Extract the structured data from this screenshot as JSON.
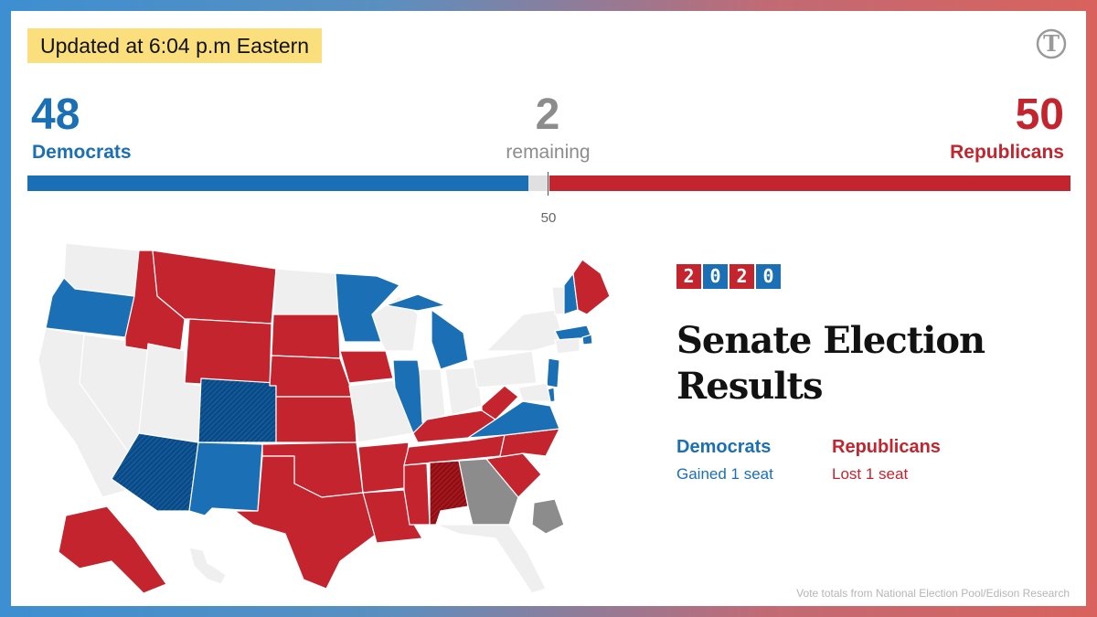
{
  "update_badge": {
    "text": "Updated at 6:04 p.m Eastern"
  },
  "logo": {
    "icon": "nyt-t-logo",
    "color": "#999999"
  },
  "tally": {
    "democrats": {
      "count": "48",
      "label": "Democrats",
      "seats": 48,
      "color": "#1a6fb5"
    },
    "remaining": {
      "count": "2",
      "label": "remaining",
      "seats": 2,
      "color": "#8c8c8c"
    },
    "republicans": {
      "count": "50",
      "label": "Republicans",
      "seats": 50,
      "color": "#c4242d"
    },
    "total_seats": 100,
    "majority_label": "50"
  },
  "year_badge": {
    "digits": [
      "2",
      "0",
      "2",
      "0"
    ]
  },
  "headline": {
    "line1": "Senate Election",
    "line2": "Results"
  },
  "summary": {
    "democrats": {
      "name": "Democrats",
      "change": "Gained 1 seat"
    },
    "republicans": {
      "name": "Republicans",
      "change": "Lost 1 seat"
    }
  },
  "map": {
    "legend_colors": {
      "dem": "#1a6fb5",
      "dem_flip": "#0b4a85",
      "rep": "#c4242d",
      "rep_flip": "#8e0f14",
      "undecided": "#8c8c8c",
      "no_race": "#efefef"
    },
    "states": [
      {
        "id": "WA",
        "status": "no_race"
      },
      {
        "id": "OR",
        "status": "dem"
      },
      {
        "id": "CA",
        "status": "no_race"
      },
      {
        "id": "NV",
        "status": "no_race"
      },
      {
        "id": "ID",
        "status": "rep"
      },
      {
        "id": "MT",
        "status": "rep"
      },
      {
        "id": "WY",
        "status": "rep"
      },
      {
        "id": "UT",
        "status": "no_race"
      },
      {
        "id": "CO",
        "status": "dem_flip"
      },
      {
        "id": "AZ",
        "status": "dem_flip"
      },
      {
        "id": "NM",
        "status": "dem"
      },
      {
        "id": "ND",
        "status": "no_race"
      },
      {
        "id": "SD",
        "status": "rep"
      },
      {
        "id": "NE",
        "status": "rep"
      },
      {
        "id": "KS",
        "status": "rep"
      },
      {
        "id": "OK",
        "status": "rep"
      },
      {
        "id": "TX",
        "status": "rep"
      },
      {
        "id": "MN",
        "status": "dem"
      },
      {
        "id": "IA",
        "status": "rep"
      },
      {
        "id": "MO",
        "status": "no_race"
      },
      {
        "id": "AR",
        "status": "rep"
      },
      {
        "id": "LA",
        "status": "rep"
      },
      {
        "id": "WI",
        "status": "no_race"
      },
      {
        "id": "IL",
        "status": "dem"
      },
      {
        "id": "MI",
        "status": "dem"
      },
      {
        "id": "IN",
        "status": "no_race"
      },
      {
        "id": "OH",
        "status": "no_race"
      },
      {
        "id": "KY",
        "status": "rep"
      },
      {
        "id": "TN",
        "status": "rep"
      },
      {
        "id": "MS",
        "status": "rep"
      },
      {
        "id": "AL",
        "status": "rep_flip"
      },
      {
        "id": "GA",
        "status": "undecided"
      },
      {
        "id": "GA-S",
        "status": "undecided"
      },
      {
        "id": "FL",
        "status": "no_race"
      },
      {
        "id": "SC",
        "status": "rep"
      },
      {
        "id": "NC",
        "status": "rep"
      },
      {
        "id": "VA",
        "status": "dem"
      },
      {
        "id": "WV",
        "status": "rep"
      },
      {
        "id": "PA",
        "status": "no_race"
      },
      {
        "id": "NY",
        "status": "no_race"
      },
      {
        "id": "VT",
        "status": "no_race"
      },
      {
        "id": "NH",
        "status": "dem"
      },
      {
        "id": "ME",
        "status": "rep"
      },
      {
        "id": "MA",
        "status": "dem"
      },
      {
        "id": "RI",
        "status": "dem"
      },
      {
        "id": "CT",
        "status": "no_race"
      },
      {
        "id": "NJ",
        "status": "dem"
      },
      {
        "id": "DE",
        "status": "dem"
      },
      {
        "id": "MD",
        "status": "no_race"
      },
      {
        "id": "AK",
        "status": "rep"
      },
      {
        "id": "HI",
        "status": "no_race"
      }
    ]
  },
  "source": {
    "text": "Vote totals from National Election Pool/Edison Research"
  }
}
